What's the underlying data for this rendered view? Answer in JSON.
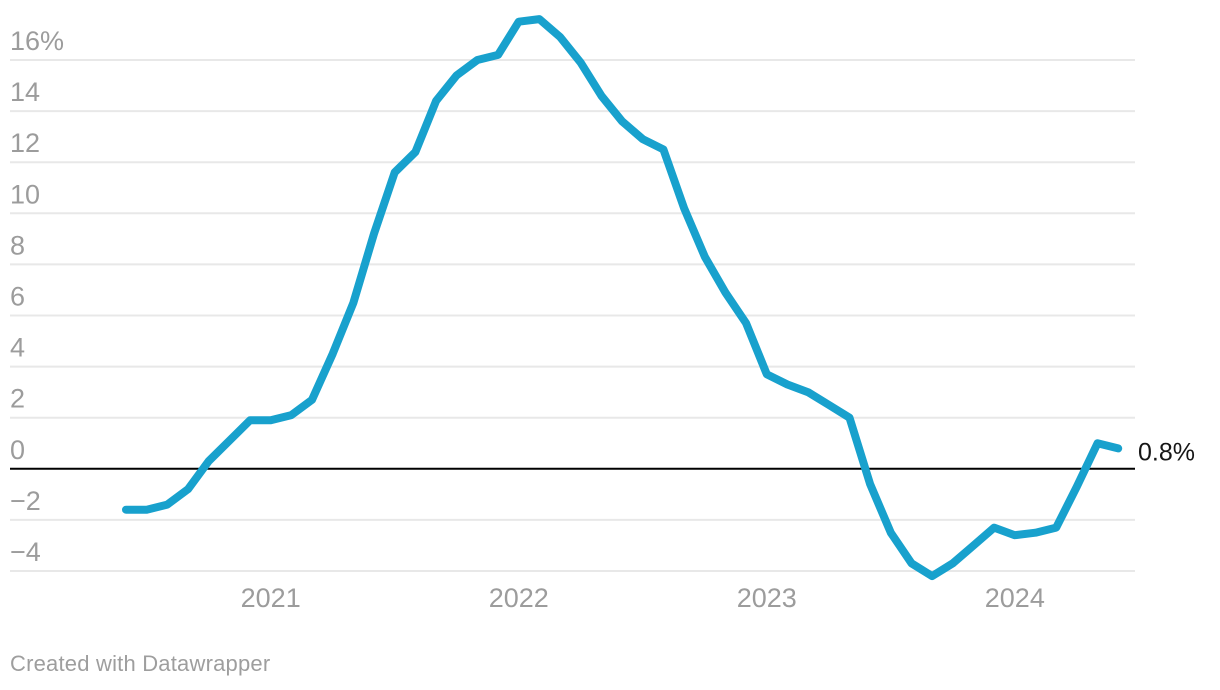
{
  "chart_data": {
    "type": "line",
    "title": "",
    "unit": "%",
    "grid": true,
    "x": [
      "2020-06",
      "2020-07",
      "2020-08",
      "2020-09",
      "2020-10",
      "2020-11",
      "2020-12",
      "2021-01",
      "2021-02",
      "2021-03",
      "2021-04",
      "2021-05",
      "2021-06",
      "2021-07",
      "2021-08",
      "2021-09",
      "2021-10",
      "2021-11",
      "2021-12",
      "2022-01",
      "2022-02",
      "2022-03",
      "2022-04",
      "2022-05",
      "2022-06",
      "2022-07",
      "2022-08",
      "2022-09",
      "2022-10",
      "2022-11",
      "2022-12",
      "2023-01",
      "2023-02",
      "2023-03",
      "2023-04",
      "2023-05",
      "2023-06",
      "2023-07",
      "2023-08",
      "2023-09",
      "2023-10",
      "2023-11",
      "2023-12",
      "2024-01",
      "2024-02",
      "2024-03",
      "2024-04",
      "2024-05",
      "2024-06"
    ],
    "values": [
      -1.6,
      -1.6,
      -1.4,
      -0.8,
      0.3,
      1.1,
      1.9,
      1.9,
      2.1,
      2.7,
      4.5,
      6.5,
      9.2,
      11.6,
      12.4,
      14.4,
      15.4,
      16.0,
      16.2,
      17.5,
      17.6,
      16.9,
      15.9,
      14.6,
      13.6,
      12.9,
      12.5,
      10.2,
      8.3,
      6.9,
      5.7,
      3.7,
      3.3,
      3.0,
      2.5,
      2.0,
      -0.6,
      -2.5,
      -3.7,
      -4.2,
      -3.7,
      -3.0,
      -2.3,
      -2.6,
      -2.5,
      -2.3,
      -0.7,
      1.0,
      0.8
    ],
    "ylim": [
      -5.2,
      18
    ],
    "xlabel": "",
    "ylabel": "",
    "legend": "none",
    "end_label": "0.8%"
  },
  "y_axis": {
    "ticks": [
      {
        "value": 16,
        "label": "16%"
      },
      {
        "value": 14,
        "label": "14"
      },
      {
        "value": 12,
        "label": "12"
      },
      {
        "value": 10,
        "label": "10"
      },
      {
        "value": 8,
        "label": "8"
      },
      {
        "value": 6,
        "label": "6"
      },
      {
        "value": 4,
        "label": "4"
      },
      {
        "value": 2,
        "label": "2"
      },
      {
        "value": 0,
        "label": "0"
      },
      {
        "value": -2,
        "label": "−2"
      },
      {
        "value": -4,
        "label": "−4"
      }
    ]
  },
  "x_axis": {
    "ticks": [
      {
        "label": "2021",
        "month_index": 7
      },
      {
        "label": "2022",
        "month_index": 19
      },
      {
        "label": "2023",
        "month_index": 31
      },
      {
        "label": "2024",
        "month_index": 43
      }
    ]
  },
  "colors": {
    "line": "#18a1cd",
    "grid": "#e8e8e8",
    "zero_line": "#000000",
    "tick_text": "#9c9c9c",
    "end_label_text": "#161616"
  },
  "footer": {
    "attribution": "Created with Datawrapper"
  }
}
